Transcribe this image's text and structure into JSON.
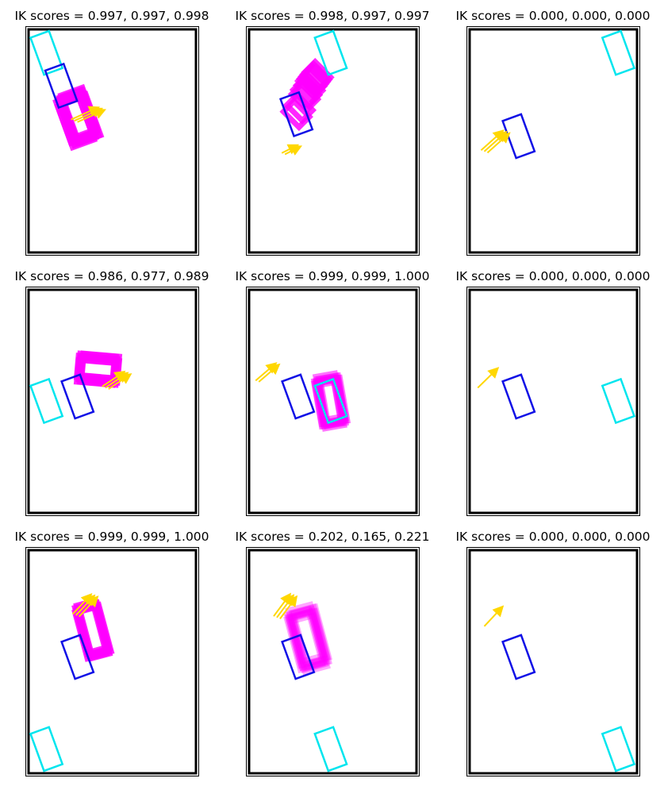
{
  "chart_data": [
    {
      "type": "scatter",
      "title": "IK scores = 0.997, 0.997, 0.998",
      "xlabel": "",
      "ylabel": "",
      "target_rect": {
        "cx": 0.19,
        "cy": 0.75,
        "w": 0.12,
        "h": 0.18,
        "angle_deg": 20,
        "color": "#1010e6"
      },
      "goal_rect": {
        "cx": 0.1,
        "cy": 0.9,
        "w": 0.12,
        "h": 0.18,
        "angle_deg": 20,
        "color": "#00e5ee"
      },
      "arm_arrows": {
        "start": [
          0.27,
          0.59
        ],
        "end": [
          0.42,
          0.64
        ],
        "count": 3,
        "color": "#ffd700"
      },
      "samples": {
        "count": 10,
        "w": 0.14,
        "h": 0.2,
        "angle_deg": 20,
        "color": "#ff00ff",
        "opacity": 0.85,
        "centers": [
          [
            0.28,
            0.61
          ],
          [
            0.29,
            0.62
          ],
          [
            0.27,
            0.6
          ],
          [
            0.3,
            0.63
          ],
          [
            0.29,
            0.61
          ],
          [
            0.31,
            0.6
          ],
          [
            0.29,
            0.59
          ],
          [
            0.28,
            0.58
          ],
          [
            0.32,
            0.6
          ],
          [
            0.3,
            0.62
          ]
        ]
      }
    },
    {
      "type": "scatter",
      "title": "IK scores = 0.998, 0.997, 0.997",
      "xlabel": "",
      "ylabel": "",
      "target_rect": {
        "cx": 0.28,
        "cy": 0.62,
        "w": 0.12,
        "h": 0.18,
        "angle_deg": 20,
        "color": "#1010e6"
      },
      "goal_rect": {
        "cx": 0.49,
        "cy": 0.9,
        "w": 0.12,
        "h": 0.18,
        "angle_deg": 20,
        "color": "#00e5ee"
      },
      "arm_arrows": {
        "start": [
          0.2,
          0.44
        ],
        "end": [
          0.28,
          0.47
        ],
        "count": 2,
        "color": "#ffd700"
      },
      "samples": {
        "count": 10,
        "w": 0.09,
        "h": 0.1,
        "angle_deg": 45,
        "color": "#ff00ff",
        "opacity": 0.85,
        "centers": [
          [
            0.28,
            0.62
          ],
          [
            0.3,
            0.65
          ],
          [
            0.33,
            0.7
          ],
          [
            0.36,
            0.74
          ],
          [
            0.38,
            0.77
          ],
          [
            0.4,
            0.79
          ],
          [
            0.41,
            0.8
          ],
          [
            0.37,
            0.76
          ],
          [
            0.34,
            0.72
          ],
          [
            0.39,
            0.78
          ]
        ]
      }
    },
    {
      "type": "scatter",
      "title": "IK scores = 0.000, 0.000, 0.000",
      "xlabel": "",
      "ylabel": "",
      "target_rect": {
        "cx": 0.29,
        "cy": 0.52,
        "w": 0.12,
        "h": 0.18,
        "angle_deg": 20,
        "color": "#1010e6"
      },
      "goal_rect": {
        "cx": 0.9,
        "cy": 0.9,
        "w": 0.12,
        "h": 0.18,
        "angle_deg": 20,
        "color": "#00e5ee"
      },
      "arm_arrows": {
        "start": [
          0.08,
          0.45
        ],
        "end": [
          0.2,
          0.53
        ],
        "count": 3,
        "color": "#ffd700"
      },
      "samples": {
        "count": 0,
        "centers": []
      }
    },
    {
      "type": "scatter",
      "title": "IK scores = 0.986, 0.977, 0.989",
      "xlabel": "",
      "ylabel": "",
      "target_rect": {
        "cx": 0.29,
        "cy": 0.52,
        "w": 0.12,
        "h": 0.18,
        "angle_deg": 20,
        "color": "#1010e6"
      },
      "goal_rect": {
        "cx": 0.1,
        "cy": 0.5,
        "w": 0.12,
        "h": 0.18,
        "angle_deg": 20,
        "color": "#00e5ee"
      },
      "arm_arrows": {
        "start": [
          0.46,
          0.56
        ],
        "end": [
          0.58,
          0.62
        ],
        "count": 3,
        "color": "#ffd700"
      },
      "samples": {
        "count": 8,
        "w": 0.22,
        "h": 0.1,
        "angle_deg": -5,
        "color": "#ff00ff",
        "opacity": 0.85,
        "centers": [
          [
            0.41,
            0.64
          ],
          [
            0.42,
            0.65
          ],
          [
            0.4,
            0.63
          ],
          [
            0.43,
            0.64
          ],
          [
            0.41,
            0.66
          ],
          [
            0.42,
            0.63
          ],
          [
            0.4,
            0.65
          ],
          [
            0.43,
            0.66
          ]
        ]
      }
    },
    {
      "type": "scatter",
      "title": "IK scores = 0.999, 0.999, 1.000",
      "xlabel": "",
      "ylabel": "",
      "target_rect": {
        "cx": 0.29,
        "cy": 0.52,
        "w": 0.12,
        "h": 0.18,
        "angle_deg": 20,
        "color": "#1010e6"
      },
      "goal_rect": {
        "cx": 0.49,
        "cy": 0.5,
        "w": 0.12,
        "h": 0.18,
        "angle_deg": 20,
        "color": "#00e5ee"
      },
      "arm_arrows": {
        "start": [
          0.04,
          0.59
        ],
        "end": [
          0.15,
          0.66
        ],
        "count": 2,
        "color": "#ffd700"
      },
      "samples": {
        "count": 12,
        "w": 0.12,
        "h": 0.2,
        "angle_deg": 10,
        "color": "#ff00ff",
        "opacity": 0.55,
        "centers": [
          [
            0.48,
            0.5
          ],
          [
            0.49,
            0.51
          ],
          [
            0.5,
            0.49
          ],
          [
            0.47,
            0.49
          ],
          [
            0.49,
            0.5
          ],
          [
            0.5,
            0.51
          ],
          [
            0.48,
            0.49
          ],
          [
            0.47,
            0.5
          ],
          [
            0.51,
            0.5
          ],
          [
            0.49,
            0.48
          ],
          [
            0.48,
            0.52
          ],
          [
            0.5,
            0.5
          ]
        ]
      }
    },
    {
      "type": "scatter",
      "title": "IK scores = 0.000, 0.000, 0.000",
      "xlabel": "",
      "ylabel": "",
      "target_rect": {
        "cx": 0.29,
        "cy": 0.52,
        "w": 0.12,
        "h": 0.18,
        "angle_deg": 20,
        "color": "#1010e6"
      },
      "goal_rect": {
        "cx": 0.9,
        "cy": 0.5,
        "w": 0.12,
        "h": 0.18,
        "angle_deg": 20,
        "color": "#00e5ee"
      },
      "arm_arrows": {
        "start": [
          0.04,
          0.56
        ],
        "end": [
          0.15,
          0.64
        ],
        "count": 1,
        "color": "#ffd700"
      },
      "samples": {
        "count": 0,
        "centers": []
      }
    },
    {
      "type": "scatter",
      "title": "IK scores = 0.999, 0.999, 1.000",
      "xlabel": "",
      "ylabel": "",
      "target_rect": {
        "cx": 0.29,
        "cy": 0.52,
        "w": 0.12,
        "h": 0.18,
        "angle_deg": 20,
        "color": "#1010e6"
      },
      "goal_rect": {
        "cx": 0.1,
        "cy": 0.1,
        "w": 0.12,
        "h": 0.18,
        "angle_deg": 20,
        "color": "#00e5ee"
      },
      "arm_arrows": {
        "start": [
          0.28,
          0.71
        ],
        "end": [
          0.38,
          0.79
        ],
        "count": 3,
        "color": "#ffd700"
      },
      "samples": {
        "count": 8,
        "w": 0.12,
        "h": 0.22,
        "angle_deg": 15,
        "color": "#ff00ff",
        "opacity": 0.85,
        "centers": [
          [
            0.38,
            0.64
          ],
          [
            0.39,
            0.65
          ],
          [
            0.37,
            0.63
          ],
          [
            0.38,
            0.66
          ],
          [
            0.4,
            0.64
          ],
          [
            0.37,
            0.65
          ],
          [
            0.39,
            0.63
          ],
          [
            0.38,
            0.64
          ]
        ]
      }
    },
    {
      "type": "scatter",
      "title": "IK scores = 0.202, 0.165, 0.221",
      "xlabel": "",
      "ylabel": "",
      "target_rect": {
        "cx": 0.29,
        "cy": 0.52,
        "w": 0.12,
        "h": 0.18,
        "angle_deg": 20,
        "color": "#1010e6"
      },
      "goal_rect": {
        "cx": 0.49,
        "cy": 0.1,
        "w": 0.12,
        "h": 0.18,
        "angle_deg": 20,
        "color": "#00e5ee"
      },
      "arm_arrows": {
        "start": [
          0.16,
          0.7
        ],
        "end": [
          0.25,
          0.79
        ],
        "count": 3,
        "color": "#ffd700"
      },
      "samples": {
        "count": 12,
        "w": 0.14,
        "h": 0.24,
        "angle_deg": 15,
        "color": "#ff00ff",
        "opacity": 0.35,
        "centers": [
          [
            0.34,
            0.6
          ],
          [
            0.36,
            0.62
          ],
          [
            0.33,
            0.61
          ],
          [
            0.35,
            0.59
          ],
          [
            0.37,
            0.6
          ],
          [
            0.34,
            0.63
          ],
          [
            0.36,
            0.58
          ],
          [
            0.35,
            0.61
          ],
          [
            0.33,
            0.59
          ],
          [
            0.37,
            0.62
          ],
          [
            0.34,
            0.6
          ],
          [
            0.36,
            0.6
          ]
        ]
      }
    },
    {
      "type": "scatter",
      "title": "IK scores = 0.000, 0.000, 0.000",
      "xlabel": "",
      "ylabel": "",
      "target_rect": {
        "cx": 0.29,
        "cy": 0.52,
        "w": 0.12,
        "h": 0.18,
        "angle_deg": 20,
        "color": "#1010e6"
      },
      "goal_rect": {
        "cx": 0.9,
        "cy": 0.1,
        "w": 0.12,
        "h": 0.18,
        "angle_deg": 20,
        "color": "#00e5ee"
      },
      "arm_arrows": {
        "start": [
          0.08,
          0.66
        ],
        "end": [
          0.18,
          0.74
        ],
        "count": 1,
        "color": "#ffd700"
      },
      "samples": {
        "count": 0,
        "centers": []
      }
    }
  ]
}
